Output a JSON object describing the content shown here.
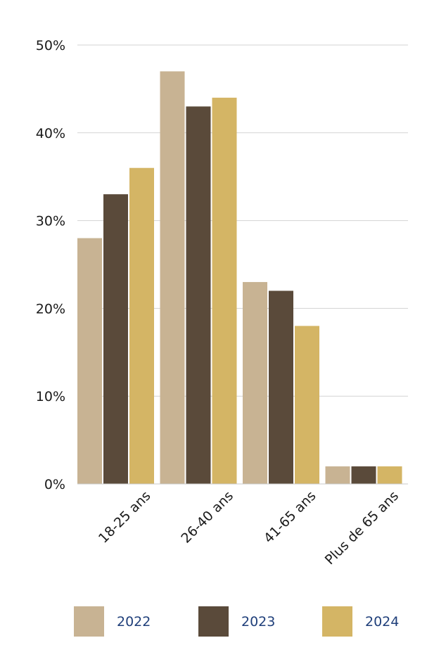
{
  "chart_data": {
    "type": "bar",
    "categories": [
      "18-25 ans",
      "26-40 ans",
      "41-65 ans",
      "Plus de 65 ans"
    ],
    "series": [
      {
        "name": "2022",
        "color": "#c8b393",
        "values": [
          28,
          47,
          23,
          2
        ]
      },
      {
        "name": "2023",
        "color": "#5a4a3a",
        "values": [
          33,
          43,
          22,
          2
        ]
      },
      {
        "name": "2024",
        "color": "#d4b565",
        "values": [
          36,
          44,
          18,
          2
        ]
      }
    ],
    "ylim": [
      0,
      50
    ],
    "yticks": [
      0,
      10,
      20,
      30,
      40,
      50
    ],
    "ytick_labels": [
      "0%",
      "10%",
      "20%",
      "30%",
      "40%",
      "50%"
    ],
    "grid": true,
    "legend_position": "bottom",
    "title": "",
    "xlabel": "",
    "ylabel": ""
  }
}
